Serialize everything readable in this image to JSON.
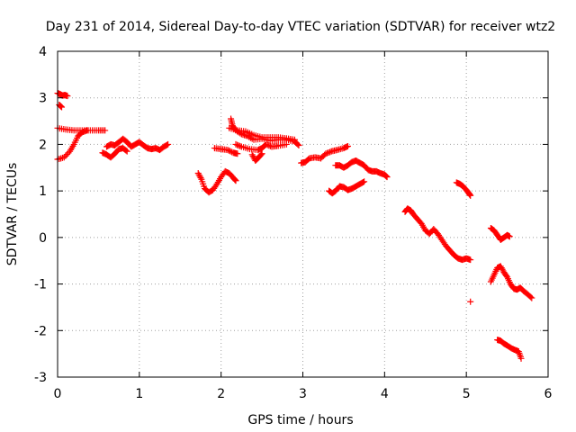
{
  "colors": {
    "series": "#ff0000",
    "grid": "#a0a0a0",
    "axis": "#000000",
    "background": "#ffffff"
  },
  "chart_data": {
    "type": "scatter",
    "marker": "plus",
    "title": "Day 231 of 2014, Sidereal Day-to-day VTEC variation (SDTVAR) for receiver wtz2",
    "xlabel": "GPS time / hours",
    "ylabel": "SDTVAR / TECUs",
    "xlim": [
      0,
      6
    ],
    "ylim": [
      -3,
      4
    ],
    "xticks": [
      0,
      1,
      2,
      3,
      4,
      5,
      6
    ],
    "yticks": [
      -3,
      -2,
      -1,
      0,
      1,
      2,
      3,
      4
    ],
    "grid": true,
    "series": [
      {
        "name": "SDTVAR",
        "segments": [
          [
            [
              0.0,
              3.1
            ],
            [
              0.03,
              3.08
            ],
            [
              0.06,
              3.05
            ],
            [
              0.09,
              3.06
            ],
            [
              0.12,
              3.04
            ]
          ],
          [
            [
              0.02,
              2.85
            ],
            [
              0.05,
              2.8
            ]
          ],
          [
            [
              0.0,
              2.35
            ],
            [
              0.1,
              2.32
            ],
            [
              0.2,
              2.3
            ],
            [
              0.3,
              2.3
            ],
            [
              0.4,
              2.3
            ],
            [
              0.5,
              2.3
            ],
            [
              0.58,
              2.3
            ]
          ],
          [
            [
              0.0,
              1.68
            ],
            [
              0.08,
              1.72
            ],
            [
              0.15,
              1.85
            ],
            [
              0.2,
              2.0
            ],
            [
              0.25,
              2.18
            ],
            [
              0.3,
              2.26
            ],
            [
              0.36,
              2.3
            ]
          ],
          [
            [
              0.55,
              1.82
            ],
            [
              0.6,
              1.78
            ],
            [
              0.65,
              1.72
            ],
            [
              0.7,
              1.8
            ],
            [
              0.75,
              1.9
            ],
            [
              0.8,
              1.92
            ],
            [
              0.85,
              1.85
            ]
          ],
          [
            [
              0.6,
              1.95
            ],
            [
              0.65,
              2.0
            ],
            [
              0.7,
              1.98
            ],
            [
              0.75,
              2.05
            ],
            [
              0.8,
              2.12
            ],
            [
              0.85,
              2.05
            ],
            [
              0.9,
              1.95
            ],
            [
              0.95,
              2.0
            ],
            [
              1.0,
              2.05
            ],
            [
              1.05,
              1.98
            ],
            [
              1.1,
              1.92
            ],
            [
              1.15,
              1.9
            ],
            [
              1.2,
              1.92
            ],
            [
              1.25,
              1.88
            ],
            [
              1.3,
              1.95
            ],
            [
              1.35,
              2.0
            ]
          ],
          [
            [
              1.72,
              1.38
            ],
            [
              1.76,
              1.25
            ],
            [
              1.8,
              1.05
            ],
            [
              1.85,
              0.97
            ],
            [
              1.9,
              1.02
            ],
            [
              1.95,
              1.15
            ],
            [
              2.0,
              1.3
            ],
            [
              2.05,
              1.42
            ],
            [
              2.1,
              1.38
            ],
            [
              2.15,
              1.28
            ],
            [
              2.18,
              1.22
            ]
          ],
          [
            [
              1.92,
              1.92
            ],
            [
              2.0,
              1.9
            ],
            [
              2.08,
              1.88
            ],
            [
              2.15,
              1.82
            ],
            [
              2.2,
              1.8
            ]
          ],
          [
            [
              2.12,
              2.55
            ],
            [
              2.14,
              2.4
            ],
            [
              2.18,
              2.3
            ],
            [
              2.25,
              2.22
            ],
            [
              2.32,
              2.18
            ],
            [
              2.4,
              2.1
            ],
            [
              2.5,
              2.12
            ],
            [
              2.6,
              2.08
            ],
            [
              2.7,
              2.1
            ],
            [
              2.8,
              2.1
            ],
            [
              2.9,
              2.06
            ],
            [
              2.95,
              1.98
            ]
          ],
          [
            [
              2.1,
              2.35
            ],
            [
              2.2,
              2.3
            ],
            [
              2.3,
              2.28
            ],
            [
              2.4,
              2.2
            ],
            [
              2.5,
              2.15
            ],
            [
              2.6,
              2.15
            ],
            [
              2.7,
              2.15
            ],
            [
              2.8,
              2.13
            ],
            [
              2.9,
              2.1
            ]
          ],
          [
            [
              2.18,
              2.0
            ],
            [
              2.25,
              1.95
            ],
            [
              2.35,
              1.9
            ],
            [
              2.45,
              1.88
            ],
            [
              2.5,
              1.92
            ],
            [
              2.55,
              2.0
            ],
            [
              2.62,
              1.95
            ],
            [
              2.7,
              1.97
            ],
            [
              2.8,
              2.0
            ]
          ],
          [
            [
              2.38,
              1.78
            ],
            [
              2.42,
              1.65
            ],
            [
              2.46,
              1.72
            ],
            [
              2.5,
              1.8
            ]
          ],
          [
            [
              2.98,
              1.6
            ],
            [
              3.03,
              1.62
            ],
            [
              3.08,
              1.7
            ],
            [
              3.15,
              1.72
            ],
            [
              3.22,
              1.7
            ],
            [
              3.28,
              1.8
            ],
            [
              3.35,
              1.85
            ],
            [
              3.42,
              1.88
            ],
            [
              3.5,
              1.92
            ],
            [
              3.55,
              1.96
            ]
          ],
          [
            [
              3.32,
              1.0
            ],
            [
              3.36,
              0.95
            ],
            [
              3.4,
              1.0
            ],
            [
              3.45,
              1.1
            ],
            [
              3.5,
              1.08
            ],
            [
              3.55,
              1.02
            ],
            [
              3.6,
              1.05
            ],
            [
              3.65,
              1.1
            ],
            [
              3.7,
              1.15
            ],
            [
              3.75,
              1.2
            ]
          ],
          [
            [
              3.4,
              1.55
            ],
            [
              3.45,
              1.55
            ],
            [
              3.5,
              1.5
            ],
            [
              3.55,
              1.55
            ],
            [
              3.6,
              1.62
            ],
            [
              3.65,
              1.65
            ],
            [
              3.7,
              1.6
            ],
            [
              3.75,
              1.55
            ],
            [
              3.8,
              1.45
            ],
            [
              3.85,
              1.42
            ],
            [
              3.9,
              1.42
            ],
            [
              3.95,
              1.38
            ],
            [
              4.0,
              1.35
            ],
            [
              4.03,
              1.3
            ]
          ],
          [
            [
              4.25,
              0.55
            ],
            [
              4.28,
              0.62
            ],
            [
              4.32,
              0.58
            ],
            [
              4.35,
              0.5
            ],
            [
              4.4,
              0.4
            ],
            [
              4.45,
              0.3
            ],
            [
              4.5,
              0.15
            ],
            [
              4.55,
              0.08
            ],
            [
              4.6,
              0.18
            ],
            [
              4.65,
              0.08
            ],
            [
              4.7,
              -0.05
            ],
            [
              4.75,
              -0.18
            ],
            [
              4.8,
              -0.28
            ],
            [
              4.85,
              -0.38
            ],
            [
              4.9,
              -0.45
            ],
            [
              4.95,
              -0.48
            ],
            [
              5.0,
              -0.45
            ],
            [
              5.05,
              -0.48
            ]
          ],
          [
            [
              4.88,
              1.18
            ],
            [
              4.92,
              1.15
            ],
            [
              4.96,
              1.1
            ],
            [
              5.0,
              1.02
            ],
            [
              5.03,
              0.95
            ],
            [
              5.05,
              0.9
            ]
          ],
          [
            [
              5.05,
              -1.38
            ]
          ],
          [
            [
              5.3,
              0.2
            ],
            [
              5.34,
              0.15
            ],
            [
              5.38,
              0.05
            ],
            [
              5.42,
              -0.05
            ],
            [
              5.46,
              0.0
            ],
            [
              5.5,
              0.05
            ],
            [
              5.53,
              0.02
            ]
          ],
          [
            [
              5.3,
              -0.95
            ],
            [
              5.34,
              -0.8
            ],
            [
              5.38,
              -0.65
            ],
            [
              5.42,
              -0.62
            ],
            [
              5.46,
              -0.75
            ],
            [
              5.5,
              -0.85
            ],
            [
              5.54,
              -1.0
            ],
            [
              5.58,
              -1.1
            ],
            [
              5.62,
              -1.12
            ],
            [
              5.66,
              -1.08
            ],
            [
              5.7,
              -1.15
            ],
            [
              5.75,
              -1.22
            ],
            [
              5.8,
              -1.3
            ]
          ],
          [
            [
              5.38,
              -2.2
            ],
            [
              5.42,
              -2.22
            ],
            [
              5.46,
              -2.28
            ],
            [
              5.5,
              -2.32
            ],
            [
              5.55,
              -2.38
            ],
            [
              5.6,
              -2.42
            ],
            [
              5.64,
              -2.45
            ],
            [
              5.67,
              -2.6
            ]
          ]
        ]
      }
    ]
  }
}
